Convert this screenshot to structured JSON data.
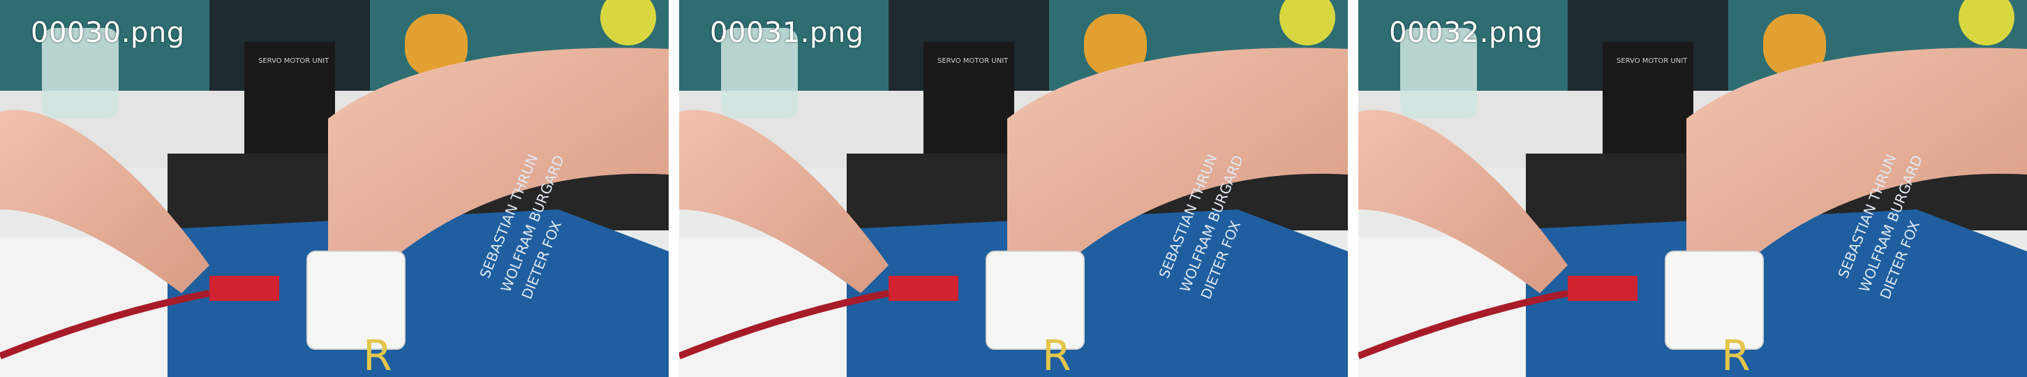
{
  "frames": [
    {
      "label": "00030.png",
      "book_authors": [
        "SEBASTIAN THRUN",
        "WOLFRAM BURGARD",
        "DIETER FOX"
      ],
      "box_text": "SERVO MOTOR UNIT",
      "book_title_fragment": "R"
    },
    {
      "label": "00031.png",
      "book_authors": [
        "SEBASTIAN THRUN",
        "WOLFRAM BURGARD",
        "DIETER FOX"
      ],
      "box_text": "SERVO MOTOR UNIT",
      "book_title_fragment": "R"
    },
    {
      "label": "00032.png",
      "book_authors": [
        "SEBASTIAN THRUN",
        "WOLFRAM BURGARD",
        "DIETER FOX"
      ],
      "box_text": "SERVO MOTOR UNIT",
      "book_title_fragment": "R"
    }
  ]
}
